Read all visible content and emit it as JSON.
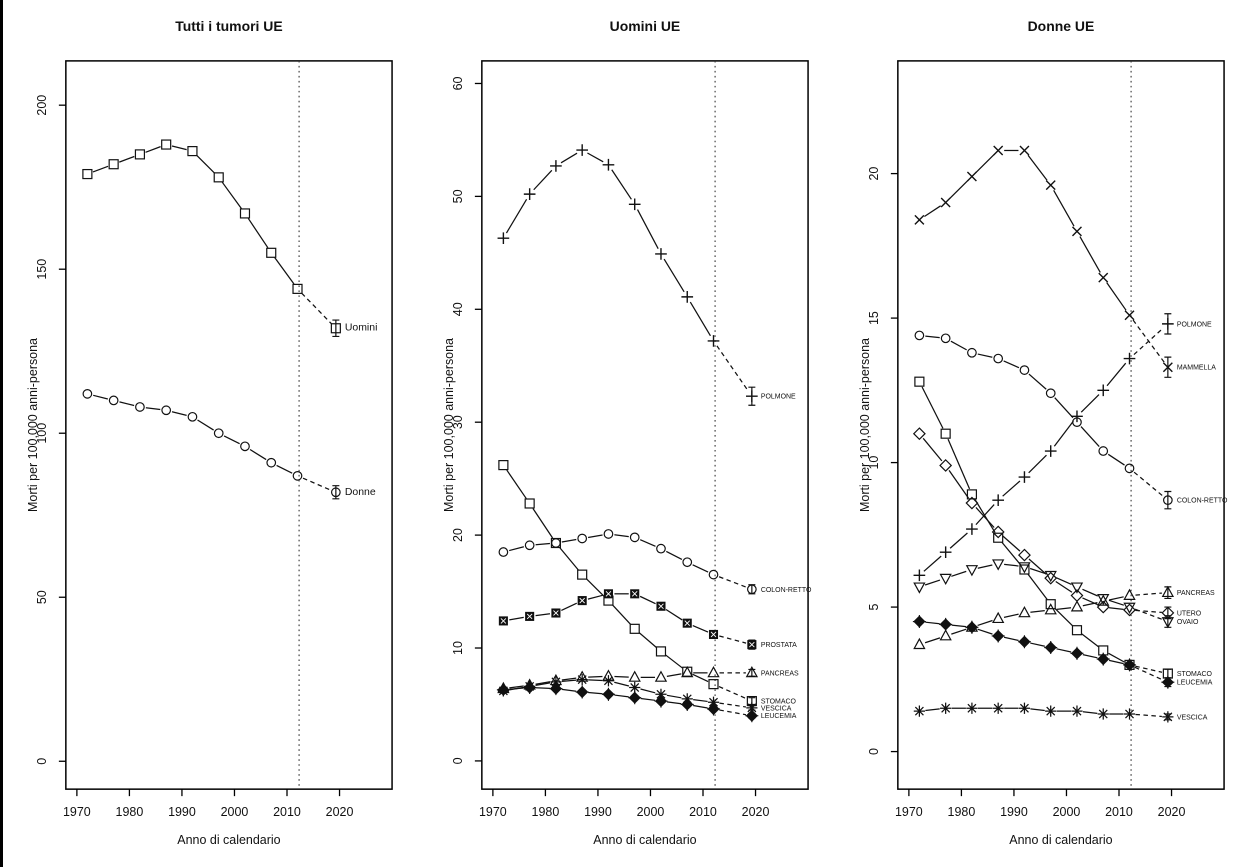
{
  "figure": {
    "description": "Three-panel line chart of cancer mortality rates in the EU with projections",
    "background": "#ffffff",
    "line_color": "#111111",
    "vline_style": "dotted",
    "projection_style": "dashed"
  },
  "chart_data": [
    {
      "type": "line",
      "title": "Tutti i tumori UE",
      "xlabel": "Anno di calendario",
      "ylabel": "Morti per 100,000 anni-persona",
      "xlim": [
        1967.9,
        2030.0
      ],
      "ylim": [
        -8.5,
        213.5
      ],
      "xticks": [
        1970,
        1980,
        1990,
        2000,
        2010,
        2020
      ],
      "yticks": [
        0,
        50,
        100,
        150,
        200
      ],
      "grid": false,
      "legend_position": "end-of-line",
      "vline_year": 2012.3,
      "years": [
        1972,
        1977,
        1982,
        1987,
        1992,
        1997,
        2002,
        2007,
        2012
      ],
      "projection_year": 2019.3,
      "label_font_px": 10.5,
      "series": [
        {
          "name": "Uomini",
          "marker": "square-open",
          "values": [
            179,
            182,
            185,
            188,
            186,
            178,
            167,
            155,
            144
          ],
          "projection": 132,
          "error": 2.5
        },
        {
          "name": "Donne",
          "marker": "circle-open",
          "values": [
            112,
            110,
            108,
            107,
            105,
            100,
            96,
            91,
            87
          ],
          "projection": 82,
          "error": 2
        }
      ]
    },
    {
      "type": "line",
      "title": "Uomini UE",
      "xlabel": "Anno di calendario",
      "ylabel": "Morti per 100,000 anni-persona",
      "xlim": [
        1967.9,
        2030.0
      ],
      "ylim": [
        -2.5,
        62.0
      ],
      "xticks": [
        1970,
        1980,
        1990,
        2000,
        2010,
        2020
      ],
      "yticks": [
        0,
        10,
        20,
        30,
        40,
        50,
        60
      ],
      "grid": false,
      "legend_position": "end-of-line",
      "vline_year": 2012.3,
      "years": [
        1972,
        1977,
        1982,
        1987,
        1992,
        1997,
        2002,
        2007,
        2012
      ],
      "projection_year": 2019.3,
      "label_font_px": 7,
      "series": [
        {
          "name": "POLMONE",
          "marker": "plus",
          "values": [
            46.3,
            50.2,
            52.7,
            54.1,
            52.8,
            49.3,
            44.9,
            41.1,
            37.2
          ],
          "projection": 32.3,
          "error": 0.8
        },
        {
          "name": "STOMACO",
          "marker": "square-open",
          "values": [
            26.2,
            22.8,
            19.3,
            16.5,
            14.2,
            11.7,
            9.7,
            7.9,
            6.8
          ],
          "projection": 5.3,
          "error": 0.3
        },
        {
          "name": "COLON-RETTO",
          "marker": "circle-open",
          "values": [
            18.5,
            19.1,
            19.3,
            19.7,
            20.1,
            19.8,
            18.8,
            17.6,
            16.5
          ],
          "projection": 15.2,
          "error": 0.4
        },
        {
          "name": "PROSTATA",
          "marker": "square-cross",
          "values": [
            12.4,
            12.8,
            13.1,
            14.2,
            14.8,
            14.8,
            13.7,
            12.2,
            11.2
          ],
          "projection": 10.3,
          "error": 0.4
        },
        {
          "name": "PANCREAS",
          "marker": "triangle-up",
          "values": [
            6.4,
            6.7,
            7.1,
            7.4,
            7.5,
            7.4,
            7.4,
            7.8,
            7.8
          ],
          "projection": 7.8,
          "error": 0.3
        },
        {
          "name": "VESCICA",
          "marker": "asterisk",
          "values": [
            6.2,
            6.6,
            7.0,
            7.2,
            7.1,
            6.5,
            5.9,
            5.5,
            5.2
          ],
          "projection": 4.7,
          "error": 0.2
        },
        {
          "name": "LEUCEMIA",
          "marker": "diamond-cross",
          "values": [
            6.3,
            6.5,
            6.4,
            6.1,
            5.9,
            5.6,
            5.3,
            5.0,
            4.6
          ],
          "projection": 4.0,
          "error": 0.2
        }
      ]
    },
    {
      "type": "line",
      "title": "Donne UE",
      "xlabel": "Anno di calendario",
      "ylabel": "Morti per 100,000 anni-persona",
      "xlim": [
        1967.9,
        2030.0
      ],
      "ylim": [
        -1.3,
        23.9
      ],
      "xticks": [
        1970,
        1980,
        1990,
        2000,
        2010,
        2020
      ],
      "yticks": [
        0,
        5,
        10,
        15,
        20
      ],
      "grid": false,
      "legend_position": "end-of-line",
      "vline_year": 2012.3,
      "years": [
        1972,
        1977,
        1982,
        1987,
        1992,
        1997,
        2002,
        2007,
        2012
      ],
      "projection_year": 2019.3,
      "label_font_px": 7,
      "series": [
        {
          "name": "MAMMELLA",
          "marker": "x",
          "values": [
            18.4,
            19.0,
            19.9,
            20.8,
            20.8,
            19.6,
            18.0,
            16.4,
            15.1
          ],
          "projection": 13.3,
          "error": 0.35
        },
        {
          "name": "POLMONE",
          "marker": "plus",
          "values": [
            6.1,
            6.9,
            7.7,
            8.7,
            9.5,
            10.4,
            11.6,
            12.5,
            13.6
          ],
          "projection": 14.8,
          "error": 0.35
        },
        {
          "name": "COLON-RETTO",
          "marker": "circle-open",
          "values": [
            14.4,
            14.3,
            13.8,
            13.6,
            13.2,
            12.4,
            11.4,
            10.4,
            9.8
          ],
          "projection": 8.7,
          "error": 0.3
        },
        {
          "name": "STOMACO",
          "marker": "square-open",
          "values": [
            12.8,
            11.0,
            8.9,
            7.4,
            6.3,
            5.1,
            4.2,
            3.5,
            3.0
          ],
          "projection": 2.7,
          "error": 0.15
        },
        {
          "name": "UTERO",
          "marker": "diamond-open",
          "values": [
            11.0,
            9.9,
            8.6,
            7.6,
            6.8,
            6.0,
            5.4,
            5.0,
            4.9
          ],
          "projection": 4.8,
          "error": 0.2
        },
        {
          "name": "OVAIO",
          "marker": "triangle-down",
          "values": [
            5.7,
            6.0,
            6.3,
            6.5,
            6.4,
            6.1,
            5.7,
            5.3,
            5.0
          ],
          "projection": 4.5,
          "error": 0.2
        },
        {
          "name": "PANCREAS",
          "marker": "triangle-up",
          "values": [
            3.7,
            4.0,
            4.3,
            4.6,
            4.8,
            4.9,
            5.0,
            5.2,
            5.4
          ],
          "projection": 5.5,
          "error": 0.2
        },
        {
          "name": "LEUCEMIA",
          "marker": "diamond-cross",
          "values": [
            4.5,
            4.4,
            4.3,
            4.0,
            3.8,
            3.6,
            3.4,
            3.2,
            3.0
          ],
          "projection": 2.4,
          "error": 0.15
        },
        {
          "name": "VESCICA",
          "marker": "asterisk",
          "values": [
            1.4,
            1.5,
            1.5,
            1.5,
            1.5,
            1.4,
            1.4,
            1.3,
            1.3
          ],
          "projection": 1.2,
          "error": 0.1
        }
      ]
    }
  ]
}
